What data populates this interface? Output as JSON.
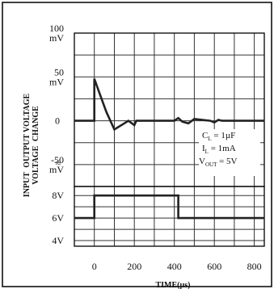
{
  "chart_data": {
    "type": "line",
    "y_axis_title": {
      "line1": "OUTPUT VOLTAGE",
      "line2": "CHANGE",
      "line3": "INPUT",
      "line4": "VOLTAGE"
    },
    "x_axis_title": "TIME(µs)",
    "xlim": [
      -100,
      850
    ],
    "x_ticks": [
      "0",
      "200",
      "400",
      "600",
      "800"
    ],
    "x_tick_values": [
      0,
      200,
      400,
      600,
      800
    ],
    "upper_panel": {
      "ylim": [
        -75,
        100
      ],
      "y_ticks": [
        {
          "value": 100,
          "line1": "100",
          "line2": "mV"
        },
        {
          "value": 50,
          "line1": "50",
          "line2": "mV"
        },
        {
          "value": 0,
          "line1": "0",
          "line2": ""
        },
        {
          "value": -50,
          "line1": "-50",
          "line2": "mV"
        }
      ],
      "series_name": "Output voltage change",
      "x": [
        -100,
        0,
        0,
        20,
        60,
        100,
        150,
        170,
        200,
        210,
        250,
        400,
        420,
        440,
        470,
        500,
        580,
        600,
        620,
        640,
        850
      ],
      "y": [
        0,
        0,
        48,
        35,
        10,
        -10,
        -3,
        0,
        -5,
        0,
        0,
        0,
        3,
        -1,
        -3,
        2,
        0,
        -2,
        1,
        0,
        0
      ]
    },
    "lower_panel": {
      "ylim": [
        3.5,
        8.8
      ],
      "y_ticks": [
        {
          "value": 8,
          "label": "8V"
        },
        {
          "value": 6,
          "label": "6V"
        },
        {
          "value": 4,
          "label": "4V"
        }
      ],
      "series_name": "Input voltage",
      "x": [
        -100,
        0,
        0,
        420,
        420,
        850
      ],
      "y": [
        6,
        6,
        8,
        8,
        6,
        6
      ]
    },
    "annotation": {
      "cl_main": "C",
      "cl_sub": "L",
      "cl_value": " = 1µF",
      "il_main": "I",
      "il_sub": "L",
      "il_value": " = 1mA",
      "vout_main": "V",
      "vout_sub": "OUT",
      "vout_value": " = 5V"
    },
    "break_mark": "≈",
    "grid": true,
    "colors": {
      "trace": "#222222",
      "grid": "#333333",
      "frame": "#000000"
    }
  }
}
